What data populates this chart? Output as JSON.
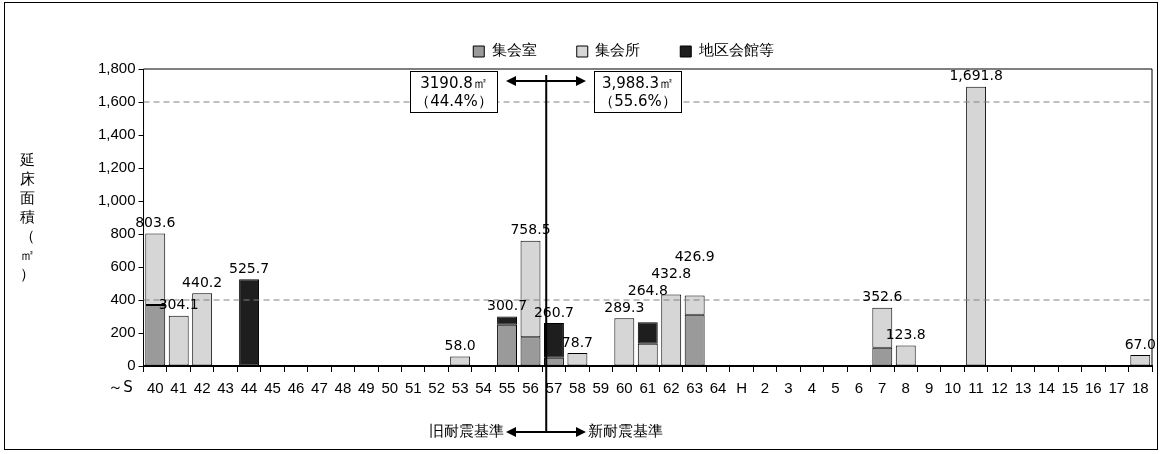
{
  "chart_data": {
    "type": "bar",
    "stacked": true,
    "ylabel": "延床面積（㎡）",
    "categories": [
      "40",
      "41",
      "42",
      "43",
      "44",
      "45",
      "46",
      "47",
      "48",
      "49",
      "50",
      "51",
      "52",
      "53",
      "54",
      "55",
      "56",
      "57",
      "58",
      "59",
      "60",
      "61",
      "62",
      "63",
      "64",
      "H",
      "2",
      "3",
      "4",
      "5",
      "6",
      "7",
      "8",
      "9",
      "10",
      "11",
      "12",
      "13",
      "14",
      "15",
      "16",
      "17",
      "18"
    ],
    "series": [
      {
        "name": "集会室",
        "color": "#9a9a9a",
        "values": [
          370.0,
          null,
          null,
          null,
          null,
          null,
          null,
          null,
          null,
          null,
          null,
          null,
          null,
          null,
          null,
          250.0,
          175.0,
          50.0,
          null,
          null,
          null,
          null,
          null,
          310.0,
          null,
          null,
          null,
          null,
          null,
          null,
          null,
          110.0,
          null,
          null,
          null,
          null,
          null,
          null,
          null,
          null,
          null,
          null,
          null
        ]
      },
      {
        "name": "集会所",
        "color": "#d6d6d6",
        "values": [
          433.6,
          304.1,
          440.2,
          null,
          null,
          null,
          null,
          null,
          null,
          null,
          null,
          null,
          null,
          58.0,
          null,
          null,
          583.5,
          null,
          78.7,
          null,
          289.3,
          135.0,
          432.8,
          116.9,
          null,
          null,
          null,
          null,
          null,
          null,
          null,
          242.6,
          123.8,
          null,
          null,
          1691.8,
          null,
          null,
          null,
          null,
          null,
          null,
          67.0
        ]
      },
      {
        "name": "地区会館等",
        "color": "#1e1e1e",
        "values": [
          null,
          null,
          null,
          null,
          525.7,
          null,
          null,
          null,
          null,
          null,
          null,
          null,
          null,
          null,
          null,
          50.7,
          null,
          210.7,
          null,
          null,
          null,
          129.8,
          null,
          null,
          null,
          null,
          null,
          null,
          null,
          null,
          null,
          null,
          null,
          null,
          null,
          null,
          null,
          null,
          null,
          null,
          null,
          null,
          null
        ]
      }
    ],
    "totals": [
      "803.6",
      "304.1",
      "440.2",
      null,
      "525.7",
      null,
      null,
      null,
      null,
      null,
      null,
      null,
      null,
      "58.0",
      null,
      "300.7",
      "758.5",
      "260.7",
      "78.7",
      null,
      "289.3",
      "264.8",
      "432.8",
      "426.9",
      null,
      null,
      null,
      null,
      null,
      null,
      null,
      "352.6",
      "123.8",
      null,
      null,
      "1,691.8",
      null,
      null,
      null,
      null,
      null,
      null,
      "67.0"
    ],
    "ylim": [
      0,
      1800
    ],
    "yticks": [
      0,
      200,
      400,
      600,
      800,
      {
        "value": 1000,
        "label": "1,000"
      },
      {
        "value": 1200,
        "label": "1,200"
      },
      {
        "value": 1400,
        "label": "1,400"
      },
      {
        "value": 1600,
        "label": "1,600"
      },
      {
        "value": 1800,
        "label": "1,800"
      }
    ],
    "ref_lines": [
      {
        "axis": "y",
        "value": 400,
        "color": "#808080",
        "line_style": "dashed"
      },
      {
        "axis": "y",
        "value": 1600,
        "color": "#808080",
        "line_style": "dashed"
      },
      {
        "axis": "x",
        "value": "57",
        "color": "#000000",
        "line_style": "solid"
      }
    ],
    "grid": false,
    "legend": "top",
    "annotations": [
      "～S",
      "3190.8㎡（44.4%）",
      "3,988.3㎡（55.6%）",
      "旧耐震基準",
      "新耐震基準"
    ]
  }
}
